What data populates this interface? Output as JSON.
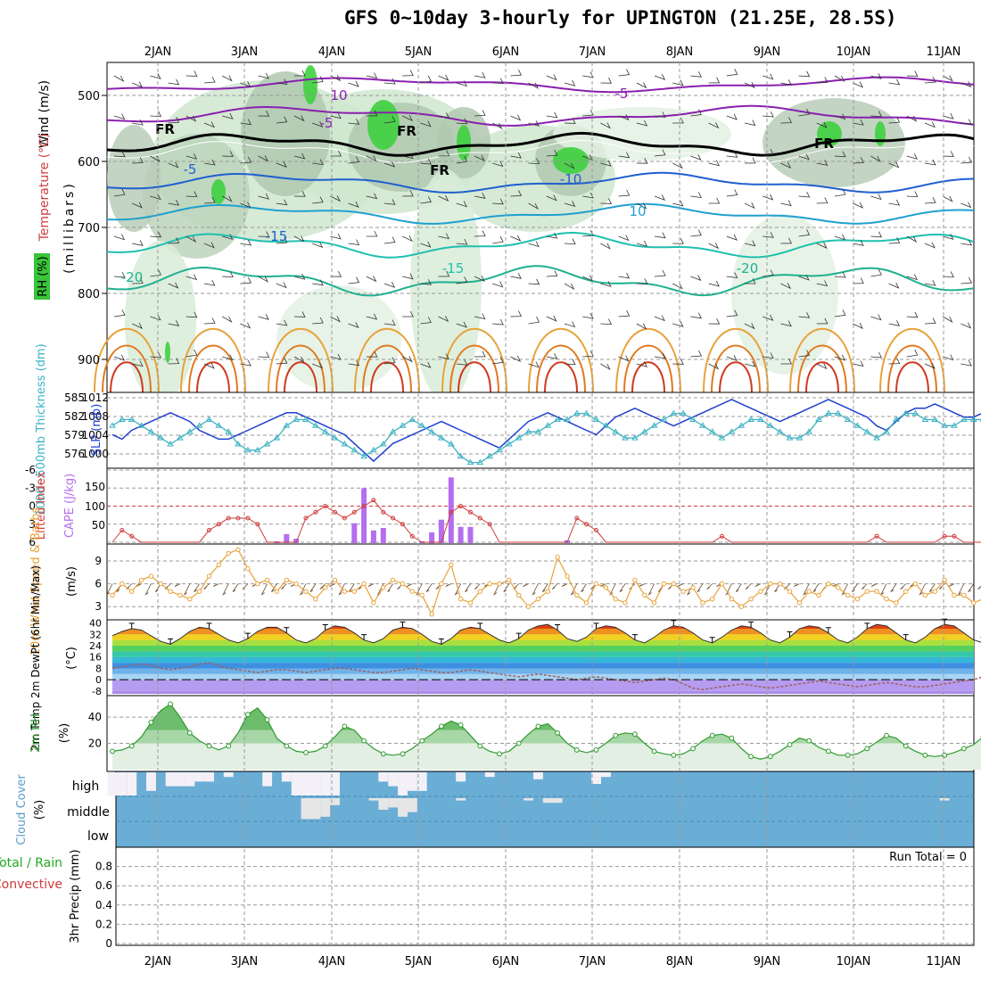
{
  "title": "GFS 0~10day 3-hourly for UPINGTON (21.25E, 28.5S)",
  "colors": {
    "wind_label": "#000000",
    "temp_label": "#d04040",
    "rh_label": "#22aa22",
    "slp": "#1f3fcf",
    "thickness": "#3cb3c3",
    "lifted": "#d03a3a",
    "cape": "#b46ef0",
    "wind10": "#e8a23a",
    "barbs": "#6b4a2a",
    "rh2m": "#2f9a2f",
    "cloud": "#6aaed6",
    "precip_total": "#22aa22",
    "precip_conv": "#d03a3a"
  },
  "time_axis": {
    "labels": [
      "2JAN",
      "3JAN",
      "4JAN",
      "5JAN",
      "6JAN",
      "7JAN",
      "8JAN",
      "9JAN",
      "10JAN",
      "11JAN"
    ]
  },
  "panels": {
    "upper": {
      "ylabel_parts": [
        "Wind (m/s)",
        "Temperature (°C)"
      ],
      "ylabel_units": "(millibars)",
      "rh_label": "RH (%)",
      "yticks": [
        "500",
        "600",
        "700",
        "800",
        "900"
      ],
      "isotherm_labels": [
        "10",
        "-5",
        "-5",
        "-5",
        "-10",
        "10",
        "-15",
        "-20",
        "-15",
        "-20",
        "FR",
        "FR",
        "FR",
        "FR"
      ]
    },
    "slp": {
      "ylabel_left": "1000~500mb Thickness (dm)",
      "ylabel_right": "SLP (mb)",
      "thickness_ticks": [
        "585",
        "582",
        "579",
        "576"
      ],
      "slp_ticks": [
        "1012",
        "1008",
        "1004",
        "1000"
      ]
    },
    "cape": {
      "ylabel_left": "Lifted Index",
      "ylabel_right": "CAPE (J/kg)",
      "li_ticks": [
        "-6",
        "-3",
        "0",
        "3",
        "6"
      ],
      "cape_ticks": [
        "150",
        "100",
        "50"
      ]
    },
    "wind10": {
      "ylabel": "10m Wind Speed & Barbs",
      "units": "(m/s)",
      "yticks": [
        "9",
        "6",
        "3"
      ]
    },
    "temp2m": {
      "ylabel": "2m Temp 2m DewPt (6hr Min/Max)",
      "units": "(°C)",
      "yticks": [
        "40",
        "32",
        "24",
        "16",
        "8",
        "0",
        "-8"
      ]
    },
    "rh2m": {
      "ylabel": "2m RH",
      "units": "(%)",
      "yticks": [
        "40",
        "20"
      ]
    },
    "cloud": {
      "ylabel": "Cloud Cover",
      "units": "(%)",
      "levels": [
        "high",
        "middle",
        "low"
      ]
    },
    "precip": {
      "ylabel_a": "3hr Precip (mm)",
      "ylabel_b": "Total / Rain",
      "ylabel_c": "Convective",
      "run_total": "Run Total = 0",
      "yticks": [
        "0.8",
        "0.6",
        "0.4",
        "0.2",
        "0"
      ]
    }
  },
  "chart_data": [
    {
      "type": "line",
      "name_ref": "slp",
      "x_step_hours": 3,
      "ylim": [
        997,
        1013
      ],
      "values": [
        1004,
        1003,
        1005,
        1006,
        1007,
        1008,
        1009,
        1008,
        1007,
        1005,
        1004,
        1003,
        1003,
        1004,
        1005,
        1006,
        1007,
        1008,
        1009,
        1009,
        1008,
        1007,
        1006,
        1005,
        1004,
        1002,
        1000,
        998,
        1000,
        1002,
        1003,
        1004,
        1005,
        1006,
        1007,
        1006,
        1005,
        1004,
        1003,
        1002,
        1001,
        1003,
        1005,
        1007,
        1008,
        1009,
        1008,
        1007,
        1006,
        1005,
        1004,
        1006,
        1008,
        1009,
        1010,
        1009,
        1008,
        1007,
        1006,
        1007,
        1008,
        1009,
        1010,
        1011,
        1012,
        1011,
        1010,
        1009,
        1008,
        1007,
        1008,
        1009,
        1010,
        1011,
        1012,
        1011,
        1010,
        1009,
        1008,
        1006,
        1005,
        1007,
        1009,
        1010,
        1010,
        1011,
        1010,
        1009,
        1008,
        1008,
        1009,
        1008
      ]
    },
    {
      "type": "line",
      "name_ref": "thickness",
      "x_step_hours": 3,
      "ylim": [
        574.5,
        586
      ],
      "values": [
        581,
        582,
        582,
        581,
        580,
        579,
        578,
        579,
        580,
        581,
        582,
        581,
        580,
        578,
        577,
        577,
        578,
        579,
        581,
        582,
        582,
        581,
        580,
        579,
        578,
        577,
        576,
        577,
        578,
        580,
        581,
        582,
        581,
        580,
        579,
        578,
        576,
        575,
        575,
        576,
        577,
        578,
        579,
        580,
        580,
        581,
        582,
        582,
        583,
        583,
        582,
        581,
        580,
        579,
        579,
        580,
        581,
        582,
        583,
        583,
        582,
        581,
        580,
        579,
        580,
        581,
        582,
        582,
        581,
        580,
        579,
        579,
        580,
        582,
        583,
        583,
        582,
        581,
        580,
        579,
        580,
        582,
        583,
        583,
        582,
        582,
        581,
        581,
        582,
        582,
        582,
        582
      ]
    },
    {
      "type": "line",
      "name_ref": "lifted_index",
      "x_step_hours": 3,
      "ylim": [
        6,
        -6
      ],
      "values": [
        6,
        4,
        5,
        6,
        6,
        6,
        6,
        6,
        6,
        6,
        4,
        3,
        2,
        2,
        2,
        3,
        6,
        6,
        6,
        6,
        2,
        1,
        0,
        1,
        2,
        1,
        0,
        -1,
        1,
        2,
        3,
        5,
        6,
        6,
        6,
        1,
        0,
        1,
        2,
        3,
        6,
        6,
        6,
        6,
        6,
        6,
        6,
        6,
        2,
        3,
        4,
        6,
        6,
        6,
        6,
        6,
        6,
        6,
        6,
        6,
        6,
        6,
        6,
        5,
        6,
        6,
        6,
        6,
        6,
        6,
        6,
        6,
        6,
        6,
        6,
        6,
        6,
        6,
        6,
        5,
        6,
        6,
        6,
        6,
        6,
        6,
        5,
        5,
        6,
        6,
        6,
        6
      ]
    },
    {
      "type": "bar",
      "name_ref": "cape",
      "x_step_hours": 3,
      "ylim": [
        0,
        200
      ],
      "values": [
        0,
        0,
        0,
        0,
        0,
        0,
        0,
        0,
        0,
        0,
        0,
        0,
        0,
        0,
        0,
        0,
        0,
        5,
        25,
        12,
        0,
        0,
        0,
        0,
        0,
        55,
        152,
        35,
        42,
        0,
        0,
        0,
        5,
        30,
        65,
        182,
        45,
        45,
        0,
        0,
        0,
        0,
        0,
        0,
        0,
        0,
        0,
        8,
        0,
        0,
        0,
        0,
        0,
        0,
        0,
        0,
        0,
        0,
        0,
        0,
        0,
        0,
        0,
        0,
        0,
        0,
        0,
        0,
        0,
        0,
        0,
        0,
        0,
        0,
        0,
        0,
        0,
        0,
        0,
        0,
        0,
        0,
        0,
        0,
        0,
        0,
        0,
        0,
        0,
        0,
        0,
        0
      ]
    },
    {
      "type": "line",
      "name_ref": "wind10",
      "x_step_hours": 3,
      "ylim": [
        1.5,
        11
      ],
      "values": [
        4.5,
        6,
        5,
        6.5,
        7,
        6,
        5,
        4.5,
        4,
        5,
        7,
        8.5,
        10,
        10.5,
        8,
        6,
        6.5,
        5,
        6.5,
        6,
        5,
        4,
        5.5,
        6.5,
        5,
        5,
        6,
        3.5,
        5.5,
        6.5,
        6,
        5,
        4.5,
        2,
        6,
        8.5,
        4,
        3.5,
        5,
        6,
        6,
        6.5,
        4.5,
        3,
        4,
        5,
        9.5,
        7,
        4.5,
        3.5,
        6,
        5.5,
        4,
        3.5,
        6.5,
        4.5,
        3.5,
        6,
        6,
        5,
        5.5,
        3.5,
        4,
        6,
        4,
        3,
        4,
        5,
        6,
        6,
        5,
        3.5,
        5,
        4.5,
        6,
        5.5,
        4.5,
        4,
        5,
        5,
        4,
        3.5,
        5,
        6,
        4.5,
        5,
        6.5,
        4.5,
        4.5,
        3.5,
        4,
        2.2
      ]
    },
    {
      "type": "area",
      "name_ref": "temp2m",
      "x_step_hours": 3,
      "ylim": [
        -10,
        41
      ],
      "values": [
        31,
        34,
        36,
        35,
        31,
        27,
        25,
        29,
        34,
        37,
        36,
        32,
        28,
        26,
        29,
        34,
        37,
        37,
        33,
        28,
        26,
        29,
        35,
        38,
        37,
        33,
        28,
        26,
        29,
        35,
        37,
        36,
        32,
        27,
        25,
        29,
        35,
        37,
        36,
        32,
        28,
        26,
        29,
        35,
        38,
        39,
        35,
        29,
        27,
        30,
        36,
        38,
        37,
        33,
        28,
        26,
        30,
        35,
        38,
        37,
        33,
        28,
        26,
        30,
        35,
        38,
        37,
        33,
        28,
        26,
        30,
        36,
        38,
        37,
        33,
        28,
        26,
        30,
        36,
        39,
        38,
        33,
        28,
        26,
        30,
        36,
        39,
        38,
        33,
        28,
        26,
        28
      ]
    },
    {
      "type": "line",
      "name_ref": "dewpt2m",
      "x_step_hours": 3,
      "ylim": [
        -10,
        41
      ],
      "values": [
        8,
        9,
        10,
        11,
        10,
        8,
        7,
        8,
        9,
        11,
        12,
        10,
        8,
        7,
        6,
        5,
        6,
        7,
        7,
        6,
        5,
        6,
        7,
        8,
        8,
        7,
        6,
        5,
        5,
        6,
        7,
        8,
        7,
        6,
        5,
        5,
        6,
        7,
        6,
        5,
        4,
        3,
        2,
        3,
        4,
        3,
        2,
        1,
        0,
        1,
        2,
        1,
        0,
        -1,
        -2,
        -1,
        0,
        1,
        0,
        -3,
        -6,
        -7,
        -6,
        -5,
        -4,
        -3,
        -4,
        -5,
        -6,
        -5,
        -4,
        -3,
        -2,
        -1,
        -2,
        -3,
        -4,
        -5,
        -4,
        -3,
        -2,
        -3,
        -4,
        -5,
        -5,
        -4,
        -3,
        -2,
        -1,
        0,
        2,
        4
      ]
    },
    {
      "type": "area",
      "name_ref": "rh2m",
      "x_step_hours": 3,
      "ylim": [
        0,
        55
      ],
      "values": [
        14,
        15,
        18,
        25,
        36,
        45,
        50,
        40,
        28,
        22,
        18,
        15,
        18,
        28,
        42,
        47,
        38,
        24,
        18,
        14,
        13,
        14,
        18,
        25,
        33,
        30,
        22,
        16,
        12,
        11,
        12,
        16,
        22,
        27,
        33,
        37,
        34,
        26,
        18,
        14,
        12,
        14,
        20,
        27,
        33,
        35,
        28,
        20,
        15,
        13,
        15,
        20,
        26,
        28,
        27,
        20,
        14,
        12,
        11,
        12,
        16,
        22,
        26,
        27,
        24,
        16,
        10,
        8,
        10,
        14,
        19,
        24,
        22,
        17,
        14,
        11,
        11,
        12,
        16,
        21,
        26,
        24,
        18,
        14,
        11,
        10,
        11,
        13,
        16,
        19,
        25,
        24
      ]
    },
    {
      "type": "bar",
      "name_ref": "cloud_high",
      "x_step_hours": 3,
      "ylim": [
        0,
        100
      ],
      "values": [
        100,
        100,
        100,
        0,
        80,
        0,
        60,
        60,
        60,
        40,
        40,
        0,
        20,
        0,
        0,
        0,
        60,
        0,
        40,
        100,
        100,
        100,
        100,
        100,
        0,
        0,
        0,
        0,
        40,
        60,
        100,
        80,
        80,
        0,
        0,
        0,
        40,
        0,
        0,
        20,
        0,
        0,
        0,
        0,
        30,
        0,
        0,
        0,
        0,
        0,
        50,
        20,
        0,
        0,
        0,
        0,
        0,
        0,
        0,
        0,
        0,
        0,
        0,
        0,
        0,
        0,
        0,
        0,
        0,
        0,
        0,
        0,
        0,
        0,
        0,
        0,
        0,
        0,
        0,
        0,
        0,
        0,
        0,
        0,
        0,
        0,
        0,
        0,
        0,
        0,
        0,
        0
      ]
    },
    {
      "type": "bar",
      "name_ref": "cloud_mid",
      "x_step_hours": 3,
      "ylim": [
        0,
        100
      ],
      "values": [
        0,
        0,
        0,
        0,
        0,
        0,
        0,
        0,
        0,
        0,
        0,
        0,
        0,
        0,
        0,
        0,
        0,
        0,
        0,
        0,
        90,
        90,
        80,
        30,
        0,
        0,
        0,
        10,
        50,
        40,
        80,
        60,
        0,
        0,
        0,
        0,
        10,
        0,
        0,
        0,
        0,
        0,
        0,
        10,
        0,
        20,
        20,
        0,
        0,
        0,
        0,
        0,
        0,
        0,
        0,
        0,
        0,
        0,
        0,
        0,
        0,
        0,
        0,
        0,
        0,
        0,
        0,
        0,
        0,
        0,
        0,
        0,
        0,
        0,
        0,
        0,
        0,
        0,
        0,
        0,
        0,
        0,
        0,
        0,
        0,
        0,
        10,
        0,
        0,
        0,
        0,
        0
      ]
    },
    {
      "type": "bar",
      "name_ref": "precip",
      "x_step_hours": 3,
      "ylim": [
        0,
        1
      ],
      "values": [
        0,
        0,
        0,
        0,
        0,
        0,
        0,
        0,
        0,
        0,
        0,
        0,
        0,
        0,
        0,
        0,
        0,
        0,
        0,
        0,
        0,
        0,
        0,
        0,
        0,
        0,
        0,
        0,
        0,
        0,
        0,
        0,
        0,
        0,
        0,
        0,
        0,
        0,
        0,
        0,
        0,
        0,
        0,
        0,
        0,
        0,
        0,
        0,
        0,
        0,
        0,
        0,
        0,
        0,
        0,
        0,
        0,
        0,
        0,
        0,
        0,
        0,
        0,
        0,
        0,
        0,
        0,
        0,
        0,
        0,
        0,
        0,
        0,
        0,
        0,
        0,
        0,
        0,
        0,
        0,
        0,
        0,
        0,
        0,
        0,
        0,
        0,
        0,
        0,
        0,
        0,
        0
      ]
    }
  ]
}
